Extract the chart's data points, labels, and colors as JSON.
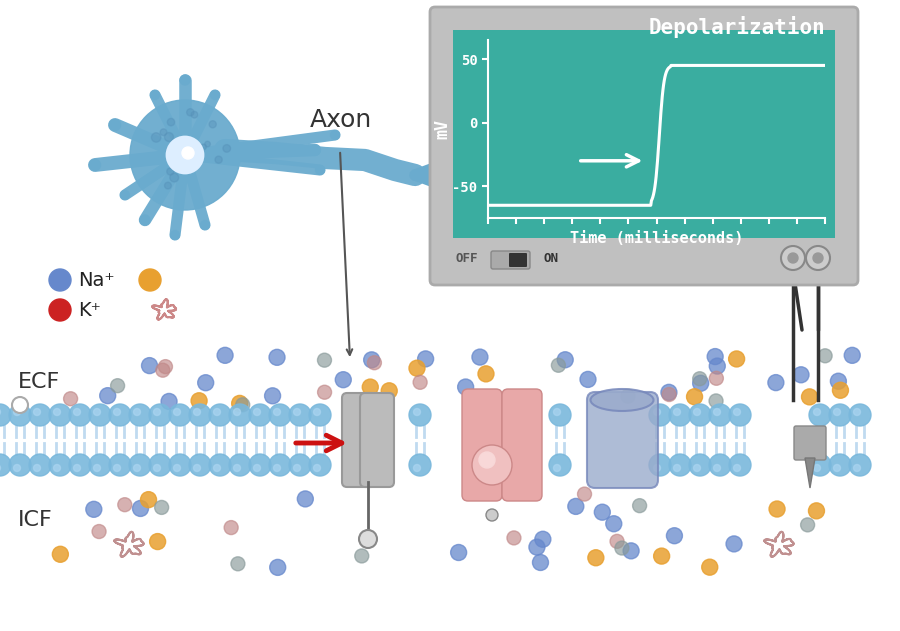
{
  "monitor_bg": "#3aada0",
  "monitor_frame": "#c0c0c0",
  "plot_title": "Depolarization",
  "xlabel": "Time (milliseconds)",
  "ylabel": "mV",
  "yticks": [
    -50,
    0,
    50
  ],
  "ylim": [
    -75,
    65
  ],
  "line_color": "#ffffff",
  "text_color": "#ffffff",
  "ecf_label": "ECF",
  "icf_label": "ICF",
  "na_label": "Na⁺",
  "k_label": "K⁺",
  "axon_label": "Axon",
  "off_label": "OFF",
  "on_label": "ON",
  "neuron_color": "#6aaBce",
  "neuron_dark": "#5590b8",
  "neuron_nucleus": "#ddeeff",
  "membrane_color": "#7ab8dc",
  "membrane_tail": "#c0daf0",
  "gray_channel_color": "#bbbbbb",
  "gray_channel_edge": "#999999",
  "pink_channel_color": "#e8a8a8",
  "pink_channel_edge": "#cc8888",
  "blue_channel_color": "#9aabcc",
  "blue_channel_edge": "#7788bb",
  "ion_blue": "#6688cc",
  "ion_orange": "#e8a030",
  "ion_pink": "#c08888",
  "ion_gray": "#889999",
  "tangle_color": "#cc8888",
  "arrow_red": "#cc1111"
}
